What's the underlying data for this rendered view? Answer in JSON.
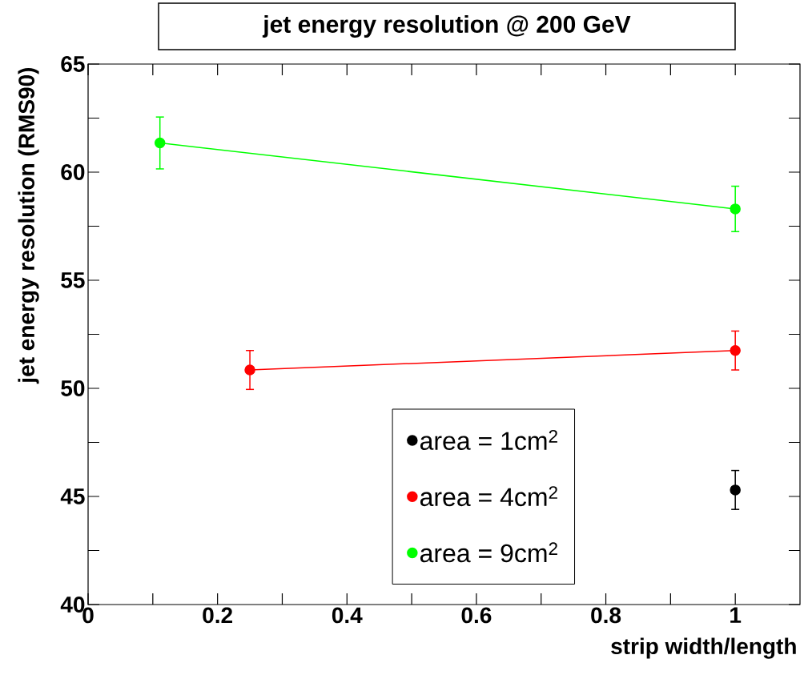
{
  "chart_data": {
    "type": "line",
    "title": "jet energy resolution @ 200 GeV",
    "xlabel": "strip width/length",
    "ylabel": "jet energy resolution (RMS90)",
    "xlim": [
      0,
      1.1
    ],
    "ylim": [
      40,
      65
    ],
    "xticks": [
      0,
      {
        "value": 0.1,
        "label": null
      },
      0.2,
      {
        "value": 0.3,
        "label": null
      },
      0.4,
      {
        "value": 0.5,
        "label": null
      },
      0.6,
      {
        "value": 0.7,
        "label": null
      },
      0.8,
      {
        "value": 0.9,
        "label": null
      },
      1
    ],
    "yticks": [
      40,
      {
        "value": 42.5,
        "label": null
      },
      45,
      {
        "value": 47.5,
        "label": null
      },
      50,
      {
        "value": 52.5,
        "label": null
      },
      55,
      {
        "value": 57.5,
        "label": null
      },
      60,
      {
        "value": 62.5,
        "label": null
      },
      65
    ],
    "marker": "circle",
    "line_style": "solid",
    "legend": "bottom right",
    "series": [
      {
        "name": "area = 1cm$^{2}$",
        "color": "#000000",
        "x": [
          1
        ],
        "values": [
          45.3
        ],
        "errors": [
          0.9
        ]
      },
      {
        "name": "area = 4cm$^{2}$",
        "color": "#ff0000",
        "x": [
          0.25,
          1
        ],
        "values": [
          50.85,
          51.75
        ],
        "errors": [
          0.9,
          0.9
        ]
      },
      {
        "name": "area = 9cm$^{2}$",
        "color": "#00ff00",
        "x": [
          0.111,
          1
        ],
        "values": [
          61.35,
          58.3
        ],
        "errors": [
          1.2,
          1.05
        ]
      }
    ]
  }
}
